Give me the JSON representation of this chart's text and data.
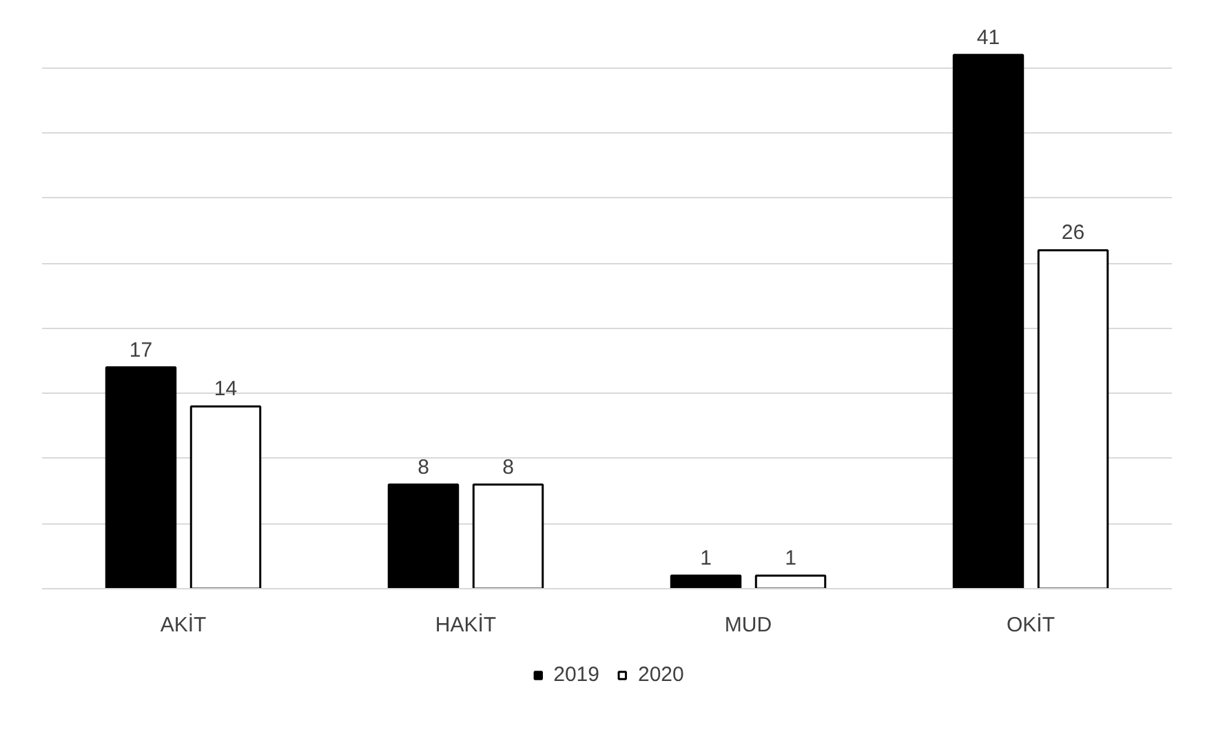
{
  "chart_data": {
    "type": "bar",
    "categories": [
      "AKİT",
      "HAKİT",
      "MUD",
      "OKİT"
    ],
    "series": [
      {
        "name": "2019",
        "color": "#000000",
        "values": [
          17,
          8,
          1,
          41
        ]
      },
      {
        "name": "2020",
        "color": "#ffffff",
        "values": [
          14,
          8,
          1,
          26
        ]
      }
    ],
    "tick_labels": "x",
    "grid": "y",
    "legend": "bottom",
    "data_labels": true
  }
}
